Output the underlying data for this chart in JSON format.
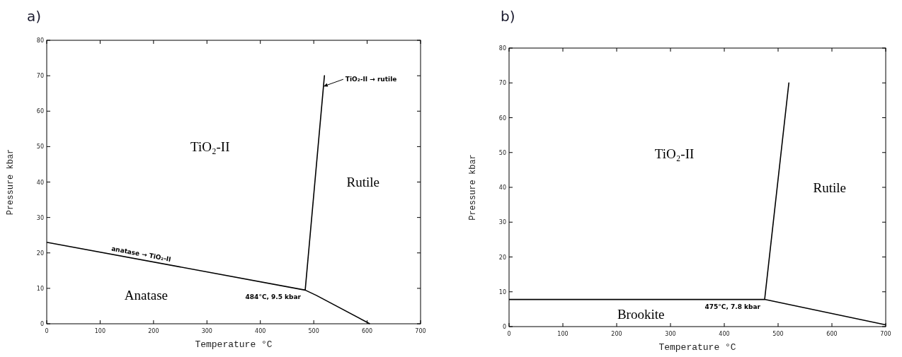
{
  "chart_data": [
    {
      "type": "line",
      "title": "a)",
      "xlabel": "Temperature °C",
      "ylabel": "Pressure kbar",
      "xlim": [
        0,
        700
      ],
      "ylim": [
        0,
        80
      ],
      "xticks": [
        0,
        100,
        200,
        300,
        400,
        500,
        600,
        700
      ],
      "yticks": [
        0,
        10,
        20,
        30,
        40,
        50,
        60,
        70,
        80
      ],
      "series": [
        {
          "color": "#000000",
          "x": [
            0,
            484,
            520,
            484,
            505,
            605
          ],
          "values": [
            23,
            9.5,
            70,
            9.5,
            8,
            0
          ]
        }
      ],
      "annotations": [
        "TiO₂-II",
        "Rutile",
        "Anatase",
        {
          "text": "anatase → TiO₂-II",
          "x": 175,
          "y": 18.12
        },
        {
          "text": "TiO₂-II → rutile",
          "x": 518.2,
          "y": 67
        },
        {
          "text": "484°C, 9.5 kbar",
          "x": 484,
          "y": 9.5
        }
      ]
    },
    {
      "type": "line",
      "title": "b)",
      "xlabel": "Temperature °C",
      "ylabel": "Pressure kbar",
      "xlim": [
        0,
        700
      ],
      "ylim": [
        0,
        80
      ],
      "xticks": [
        0,
        100,
        200,
        300,
        400,
        500,
        600,
        700
      ],
      "yticks": [
        0,
        10,
        20,
        30,
        40,
        50,
        60,
        70,
        80
      ],
      "series": [
        {
          "color": "#000000",
          "x": [
            0,
            475,
            520,
            475,
            700
          ],
          "values": [
            7.8,
            7.8,
            70,
            7.8,
            0.5
          ]
        }
      ],
      "annotations": [
        "TiO₂-II",
        "Rutile",
        "Brookite",
        {
          "text": "475°C, 7.8 kbar",
          "x": 475,
          "y": 7.8
        }
      ]
    }
  ]
}
